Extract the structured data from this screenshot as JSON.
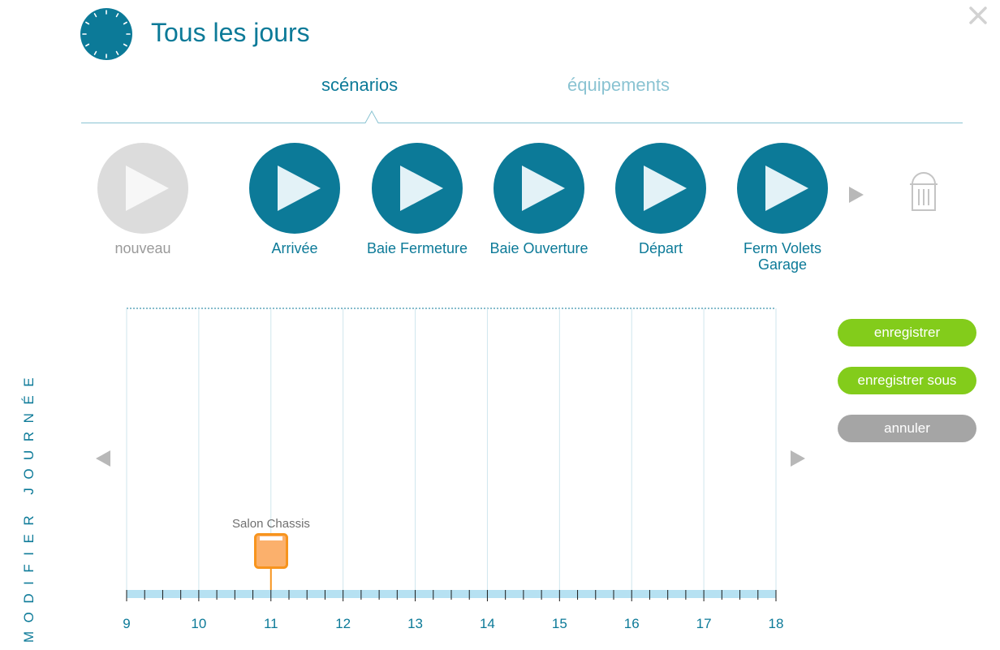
{
  "header": {
    "title": "Tous les jours",
    "icons": {
      "clock": "clock-icon",
      "close": "close-icon"
    }
  },
  "tabs": [
    {
      "label": "scénarios",
      "active": true
    },
    {
      "label": "équipements",
      "active": false
    }
  ],
  "scenarios": [
    {
      "label": "nouveau",
      "state": "disabled"
    },
    {
      "label": "Arrivée"
    },
    {
      "label": "Baie Fermeture"
    },
    {
      "label": "Baie Ouverture"
    },
    {
      "label": "Départ"
    },
    {
      "label": "Ferm Volets Garage"
    }
  ],
  "side_label": "MODIFIER JOURNÉE",
  "timeline": {
    "ticks": [
      "9",
      "10",
      "11",
      "12",
      "13",
      "14",
      "15",
      "16",
      "17",
      "18"
    ],
    "range_start_hour": 9,
    "range_end_hour": 18,
    "events": [
      {
        "label": "Salon Chassis",
        "hour": 11
      }
    ]
  },
  "buttons": {
    "save": "enregistrer",
    "save_as": "enregistrer sous",
    "cancel": "annuler"
  },
  "colors": {
    "brand": "#0c7a98",
    "tab_inactive": "#8ac3d2",
    "disabled": "#dcdcdc",
    "save": "#83cc1b",
    "cancel": "#a5a5a5",
    "event": "#f7941d",
    "timeline_band": "#b6e1f2"
  }
}
